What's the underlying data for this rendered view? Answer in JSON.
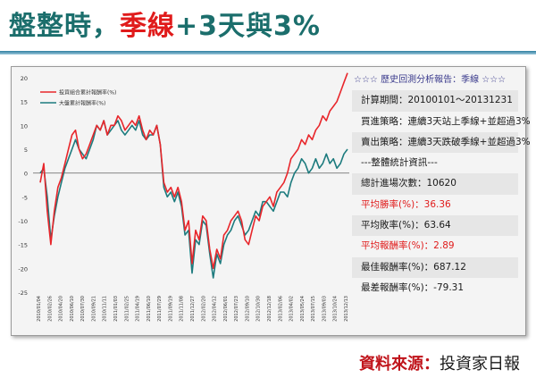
{
  "title": {
    "part1": "盤整時，",
    "part2": "季線",
    "part3": "+3天與3%"
  },
  "colors": {
    "title_teal": "#1b6e6c",
    "title_red": "#e01b1b",
    "portfolio": "#e8262b",
    "index": "#1d7b7e"
  },
  "source": {
    "label": "資料來源：",
    "name": "投資家日報"
  },
  "stats": [
    {
      "text": "☆☆☆ 歷史回測分析報告：季線 ☆☆☆",
      "style": "heading"
    },
    {
      "text": "計算期間：20100101～20131231",
      "style": "shade"
    },
    {
      "text": "買進策略：連續3天站上季線+並超過3%",
      "style": ""
    },
    {
      "text": "賣出策略：連續3天跌破季線+並超過3%",
      "style": "shade"
    },
    {
      "text": "---整體統計資訊---",
      "style": ""
    },
    {
      "text": "總計進場次數：10620",
      "style": "shade"
    },
    {
      "text": "平均勝率(%)：36.36",
      "style": "red"
    },
    {
      "text": "平均敗率(%)：63.64",
      "style": "shade"
    },
    {
      "text": "平均報酬率(%)：2.89",
      "style": "red"
    },
    {
      "text": "最佳報酬率(%)：687.12",
      "style": "shade"
    },
    {
      "text": "最差報酬率(%)：-79.31",
      "style": ""
    }
  ],
  "chart_data": {
    "type": "line",
    "ylim": [
      -25,
      20
    ],
    "yticks": [
      20,
      15,
      10,
      5,
      0,
      -5,
      -10,
      -15,
      -20,
      -25
    ],
    "grid": false,
    "legend_position": "top-left",
    "x_tick_labels": [
      "2010/01/04",
      "2010/02/26",
      "2010/04/20",
      "2010/06/10",
      "2010/07/30",
      "2010/09/21",
      "2010/11/11",
      "2011/01/03",
      "2011/02/25",
      "2011/04/19",
      "2011/06/10",
      "2011/07/29",
      "2011/09/19",
      "2011/11/08",
      "2011/12/27",
      "2012/02/20",
      "2012/04/12",
      "2012/06/01",
      "2012/07/23",
      "2012/09/10",
      "2012/10/30",
      "2012/12/18",
      "2013/02/06",
      "2013/04/02",
      "2013/05/24",
      "2013/07/15",
      "2013/09/03",
      "2013/10/24",
      "2013/12/13"
    ],
    "series": [
      {
        "name": "投資組合累計報酬率(%)",
        "values": [
          -2,
          2,
          -8,
          -15,
          -8,
          -3,
          -1,
          2,
          5,
          8,
          9,
          5,
          3,
          4,
          6,
          8,
          10,
          9,
          11,
          8,
          10,
          10,
          12,
          11,
          9,
          10,
          11,
          10,
          12,
          9,
          7,
          9,
          8,
          10,
          6,
          -2,
          -4,
          -3,
          -5,
          -3,
          -6,
          -12,
          -10,
          -19,
          -12,
          -14,
          -9,
          -10,
          -16,
          -20,
          -16,
          -18,
          -13,
          -12,
          -10,
          -9,
          -8,
          -10,
          -14,
          -15,
          -12,
          -9,
          -10,
          -7,
          -6,
          -5,
          -7,
          -4,
          -3,
          -2,
          0,
          3,
          4,
          5,
          7,
          6,
          8,
          7,
          9,
          10,
          12,
          11,
          13,
          14,
          15,
          17,
          19,
          21
        ]
      },
      {
        "name": "大盤累計報酬率(%)",
        "values": [
          0,
          1,
          -5,
          -14,
          -9,
          -5,
          -2,
          1,
          3,
          5,
          7,
          5,
          4,
          3,
          5,
          7,
          10,
          9,
          11,
          8,
          9,
          10,
          11,
          9,
          8,
          9,
          10,
          9,
          11,
          8,
          7,
          8,
          8,
          10,
          6,
          -3,
          -5,
          -4,
          -6,
          -4,
          -7,
          -13,
          -12,
          -21,
          -14,
          -15,
          -10,
          -11,
          -17,
          -22,
          -17,
          -19,
          -15,
          -13,
          -12,
          -10,
          -9,
          -11,
          -13,
          -12,
          -10,
          -8,
          -9,
          -6,
          -6,
          -7,
          -8,
          -6,
          -4,
          -4,
          -5,
          -2,
          0,
          1,
          3,
          2,
          0,
          1,
          3,
          1,
          2,
          4,
          2,
          3,
          1,
          2,
          4,
          5
        ]
      }
    ]
  }
}
